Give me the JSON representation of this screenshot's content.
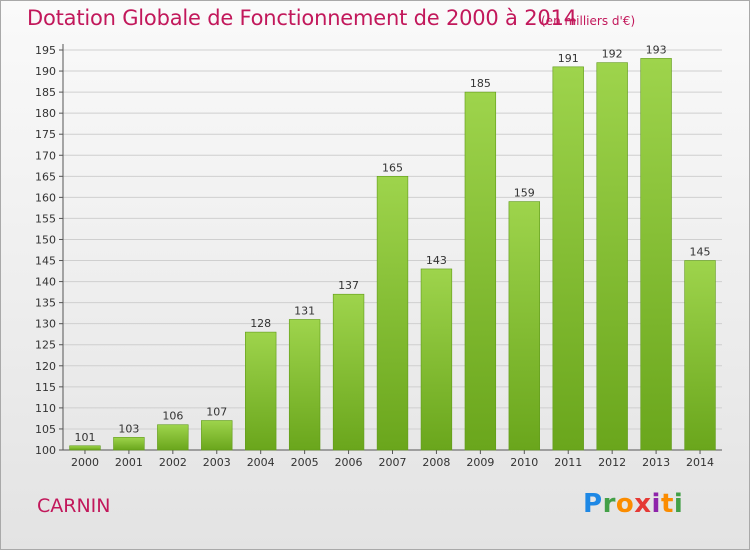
{
  "header": {
    "title": "Dotation Globale de Fonctionnement de 2000 à 2014",
    "subtitle": "(en milliers d'€)"
  },
  "footer": {
    "place": "CARNIN",
    "logo": "Proxiti"
  },
  "colors": {
    "title": "#c2185b",
    "bar_light": "#9ed44c",
    "bar_dark": "#6aa61c"
  },
  "chart_data": {
    "type": "bar",
    "title": "Dotation Globale de Fonctionnement de 2000 à 2014",
    "subtitle": "(en milliers d'€)",
    "categories": [
      "2000",
      "2001",
      "2002",
      "2003",
      "2004",
      "2005",
      "2006",
      "2007",
      "2008",
      "2009",
      "2010",
      "2011",
      "2012",
      "2013",
      "2014"
    ],
    "values": [
      101,
      103,
      106,
      107,
      128,
      131,
      137,
      165,
      143,
      185,
      159,
      191,
      192,
      193,
      145
    ],
    "ylim": [
      100,
      195
    ],
    "yticks": [
      100,
      105,
      110,
      115,
      120,
      125,
      130,
      135,
      140,
      145,
      150,
      155,
      160,
      165,
      170,
      175,
      180,
      185,
      190,
      195
    ],
    "grid": true,
    "legend": "none",
    "data_labels": true
  }
}
